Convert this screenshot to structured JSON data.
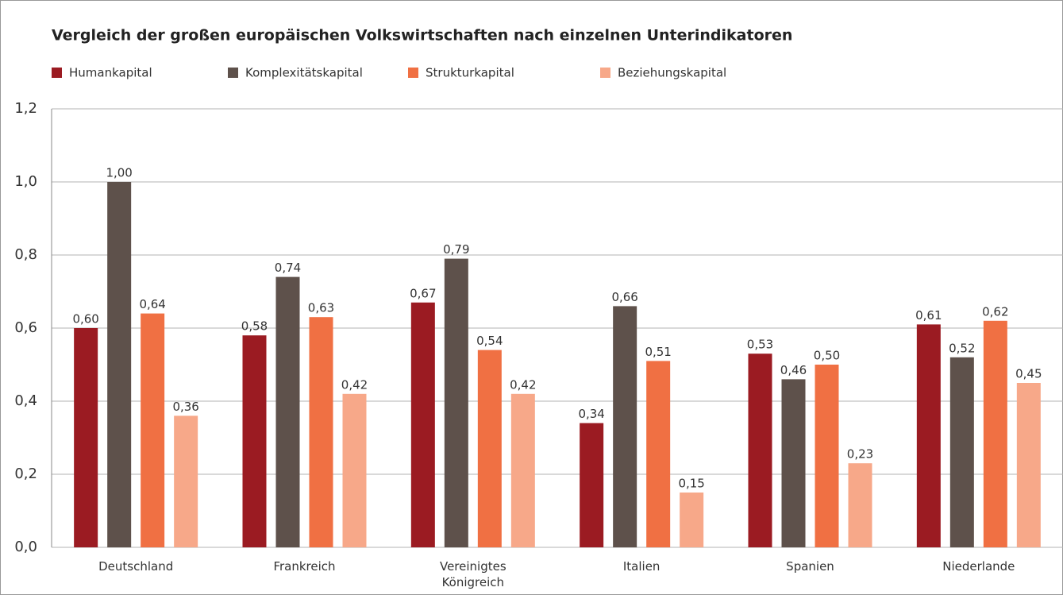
{
  "chart_data": {
    "type": "bar",
    "title": "Vergleich der großen europäischen Volkswirtschaften nach einzelnen Unterindikatoren",
    "categories": [
      "Deutschland",
      "Frankreich",
      "Vereinigtes Königreich",
      "Italien",
      "Spanien",
      "Niederlande"
    ],
    "series": [
      {
        "name": "Humankapital",
        "color": "#9b1b22",
        "values": [
          0.6,
          0.58,
          0.67,
          0.34,
          0.53,
          0.61
        ],
        "value_labels": [
          "0,60",
          "0,58",
          "0,67",
          "0,34",
          "0,53",
          "0,61"
        ]
      },
      {
        "name": "Komplexitätskapital",
        "color": "#5e514b",
        "values": [
          1.0,
          0.74,
          0.79,
          0.66,
          0.46,
          0.52
        ],
        "value_labels": [
          "1,00",
          "0,74",
          "0,79",
          "0,66",
          "0,46",
          "0,52"
        ]
      },
      {
        "name": "Strukturkapital",
        "color": "#f07043",
        "values": [
          0.64,
          0.63,
          0.54,
          0.51,
          0.5,
          0.62
        ],
        "value_labels": [
          "0,64",
          "0,63",
          "0,54",
          "0,51",
          "0,50",
          "0,62"
        ]
      },
      {
        "name": "Beziehungskapital",
        "color": "#f7a889",
        "values": [
          0.36,
          0.42,
          0.42,
          0.15,
          0.23,
          0.45
        ],
        "value_labels": [
          "0,36",
          "0,42",
          "0,42",
          "0,15",
          "0,23",
          "0,45"
        ]
      }
    ],
    "ylim": [
      0,
      1.2
    ],
    "yticks": [
      {
        "value": 0,
        "label": "0,0"
      },
      {
        "value": 0.2,
        "label": "0,2"
      },
      {
        "value": 0.4,
        "label": "0,4"
      },
      {
        "value": 0.6,
        "label": "0,6"
      },
      {
        "value": 0.8,
        "label": "0,8"
      },
      {
        "value": 1.0,
        "label": "1,0"
      },
      {
        "value": 1.2,
        "label": "1,2"
      }
    ],
    "grid": true,
    "legend": "top-left"
  }
}
